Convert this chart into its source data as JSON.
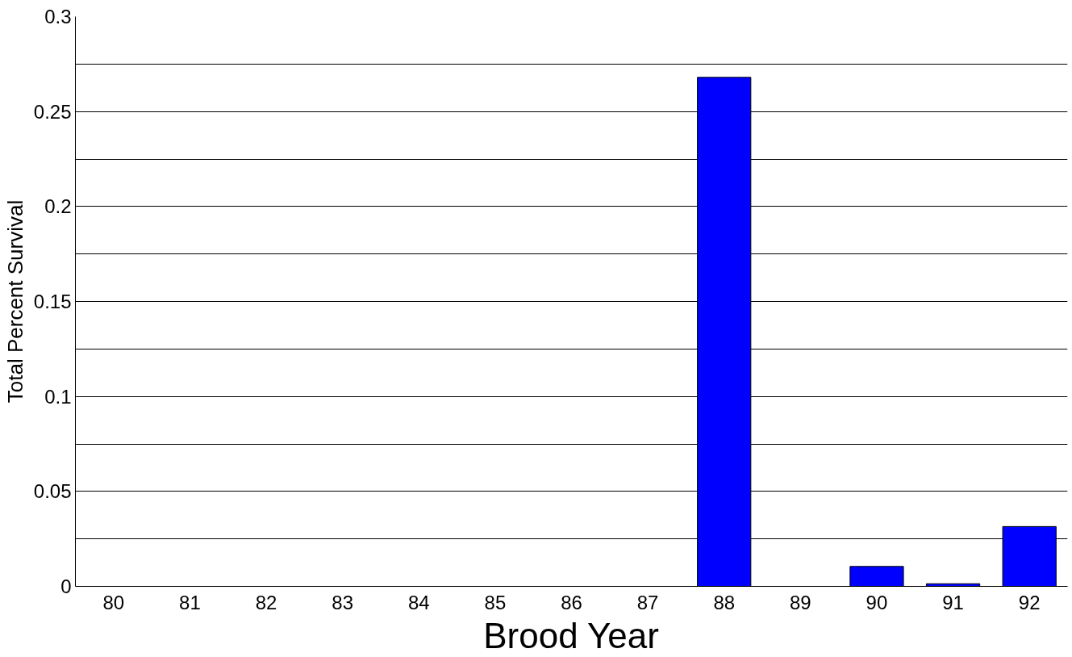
{
  "chart_data": {
    "type": "bar",
    "xlabel": "Brood Year",
    "ylabel": "Total Percent Survival",
    "categories": [
      "80",
      "81",
      "82",
      "83",
      "84",
      "85",
      "86",
      "87",
      "88",
      "89",
      "90",
      "91",
      "92"
    ],
    "values": [
      0,
      0,
      0,
      0,
      0,
      0,
      0,
      0,
      0.268,
      0,
      0.0105,
      0.0014,
      0.0315
    ],
    "color": "#0000ff",
    "ylim": [
      0,
      0.3
    ],
    "yticks": [
      0,
      {
        "value": 0.025,
        "label": null
      },
      0.05,
      {
        "value": 0.075,
        "label": null
      },
      0.1,
      {
        "value": 0.125,
        "label": null
      },
      0.15,
      {
        "value": 0.175,
        "label": null
      },
      0.2,
      {
        "value": 0.225,
        "label": null
      },
      0.25,
      {
        "value": 0.275,
        "label": null
      },
      0.3
    ],
    "grid": "y"
  }
}
